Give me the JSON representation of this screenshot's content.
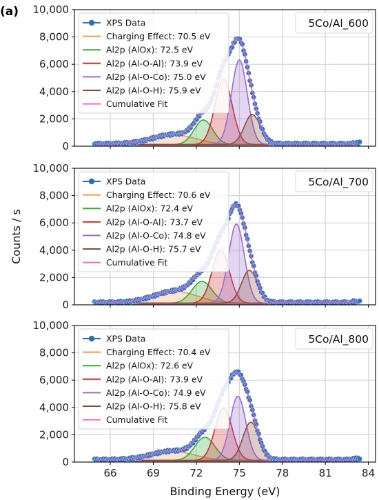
{
  "figure_label": "(a)",
  "colors": {
    "data": "#2f6db5",
    "charging": "#f39a4c",
    "alox": "#37a83a",
    "al_o_al": "#d22828",
    "al_o_co": "#9b6ad0",
    "al_o_h": "#8c4a3a",
    "cumulative": "#ec6fc9",
    "grid": "#cfcfcf",
    "frame": "#000000"
  },
  "chart_data": [
    {
      "type": "line",
      "title": "5Co/Al_600",
      "xlabel": "",
      "ylabel": "",
      "xlim": [
        63.5,
        84.5
      ],
      "ylim": [
        0,
        10000
      ],
      "xticks": [
        "66",
        "69",
        "72",
        "75",
        "78",
        "81",
        "84"
      ],
      "yticks": [
        "0",
        "2,000",
        "4,000",
        "6,000",
        "8,000",
        "10,000"
      ],
      "grid": true,
      "legend_position": "top-left",
      "peak_position": 74.8,
      "series": [
        {
          "name": "XPS Data",
          "kind": "points",
          "color_key": "data"
        },
        {
          "name": "Charging Effect: 70.5 eV",
          "center": 70.5,
          "height": 700,
          "sigma": 1.5,
          "color_key": "charging"
        },
        {
          "name": "Al2p (AlOx): 72.5 eV",
          "center": 72.5,
          "height": 1800,
          "sigma": 0.65,
          "color_key": "alox"
        },
        {
          "name": "Al2p (Al-O-Al): 73.9 eV",
          "center": 73.9,
          "height": 4800,
          "sigma": 0.6,
          "color_key": "al_o_al"
        },
        {
          "name": "Al2p (Al-O-Co): 75.0 eV",
          "center": 75.0,
          "height": 6200,
          "sigma": 0.55,
          "color_key": "al_o_co"
        },
        {
          "name": "Al2p (Al-O-H): 75.9 eV",
          "center": 75.9,
          "height": 2200,
          "sigma": 0.55,
          "color_key": "al_o_h"
        },
        {
          "name": "Cumulative Fit",
          "kind": "sum",
          "color_key": "cumulative"
        }
      ]
    },
    {
      "type": "line",
      "title": "5Co/Al_700",
      "xlabel": "",
      "ylabel": "Counts / s",
      "xlim": [
        63.5,
        84.5
      ],
      "ylim": [
        0,
        10000
      ],
      "xticks": [
        "66",
        "69",
        "72",
        "75",
        "78",
        "81",
        "84"
      ],
      "yticks": [
        "0",
        "2,000",
        "4,000",
        "6,000",
        "8,000",
        "10,000"
      ],
      "grid": true,
      "legend_position": "top-left",
      "peak_position": 74.6,
      "series": [
        {
          "name": "XPS Data",
          "kind": "points",
          "color_key": "data"
        },
        {
          "name": "Charging Effect: 70.6 eV",
          "center": 70.6,
          "height": 850,
          "sigma": 1.5,
          "color_key": "charging"
        },
        {
          "name": "Al2p (AlOx): 72.4 eV",
          "center": 72.4,
          "height": 1600,
          "sigma": 0.7,
          "color_key": "alox"
        },
        {
          "name": "Al2p (Al-O-Al): 73.7 eV",
          "center": 73.7,
          "height": 3900,
          "sigma": 0.6,
          "color_key": "al_o_al"
        },
        {
          "name": "Al2p (Al-O-Co): 74.8 eV",
          "center": 74.8,
          "height": 5800,
          "sigma": 0.55,
          "color_key": "al_o_co"
        },
        {
          "name": "Al2p (Al-O-H): 75.7 eV",
          "center": 75.7,
          "height": 2400,
          "sigma": 0.55,
          "color_key": "al_o_h"
        },
        {
          "name": "Cumulative Fit",
          "kind": "sum",
          "color_key": "cumulative"
        }
      ]
    },
    {
      "type": "line",
      "title": "5Co/Al_800",
      "xlabel": "Binding Energy (eV)",
      "ylabel": "",
      "xlim": [
        63.5,
        84.5
      ],
      "ylim": [
        0,
        10000
      ],
      "xticks": [
        "66",
        "69",
        "72",
        "75",
        "78",
        "81",
        "84"
      ],
      "yticks": [
        "0",
        "2,000",
        "4,000",
        "6,000",
        "8,000",
        "10,000"
      ],
      "grid": true,
      "legend_position": "top-left",
      "peak_position": 74.8,
      "series": [
        {
          "name": "XPS Data",
          "kind": "points",
          "color_key": "data"
        },
        {
          "name": "Charging Effect: 70.4 eV",
          "center": 70.4,
          "height": 650,
          "sigma": 1.5,
          "color_key": "charging"
        },
        {
          "name": "Al2p (AlOx): 72.6 eV",
          "center": 72.6,
          "height": 1700,
          "sigma": 0.7,
          "color_key": "alox"
        },
        {
          "name": "Al2p (Al-O-Al): 73.9 eV",
          "center": 73.9,
          "height": 3850,
          "sigma": 0.6,
          "color_key": "al_o_al"
        },
        {
          "name": "Al2p (Al-O-Co): 74.9 eV",
          "center": 74.9,
          "height": 4700,
          "sigma": 0.55,
          "color_key": "al_o_co"
        },
        {
          "name": "Al2p (Al-O-H): 75.8 eV",
          "center": 75.8,
          "height": 2800,
          "sigma": 0.55,
          "color_key": "al_o_h"
        },
        {
          "name": "Cumulative Fit",
          "kind": "sum",
          "color_key": "cumulative"
        }
      ]
    }
  ]
}
